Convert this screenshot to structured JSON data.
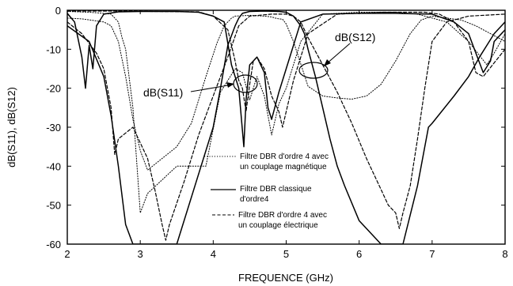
{
  "chart_data": {
    "type": "line",
    "title": "",
    "xlabel": "FREQUENCE (GHz)",
    "ylabel": "dB(S11), dB(S12)",
    "xlim": [
      2,
      8
    ],
    "ylim": [
      -60,
      0
    ],
    "xticks": [
      2,
      3,
      4,
      5,
      6,
      7,
      8
    ],
    "yticks": [
      0,
      -10,
      -20,
      -30,
      -40,
      -50,
      -60
    ],
    "grid": false,
    "legend_placement": "bottom-center",
    "annotations": [
      {
        "text": "dB(S11)"
      },
      {
        "text": "dB(S12)"
      }
    ],
    "series": [
      {
        "name": "Filtre DBR d'ordre 4 avec un couplage magnétique",
        "legend_lines": [
          "Filtre DBR d'ordre 4 avec",
          "un couplage magnétique"
        ],
        "style": "dotted",
        "s12": {
          "x": [
            2.0,
            2.2,
            2.35,
            2.5,
            2.6,
            2.7,
            2.8,
            2.9,
            3.0,
            3.1,
            3.3,
            3.5,
            3.7,
            3.9,
            4.05,
            4.15,
            4.25,
            4.3,
            4.5,
            4.7,
            4.8,
            4.85,
            4.9,
            4.95,
            5.0,
            5.1,
            5.3,
            5.5,
            5.7,
            5.9,
            6.1,
            6.3,
            6.5,
            6.7,
            6.85,
            7.0,
            7.2,
            7.4,
            7.6,
            7.8,
            8.0
          ],
          "y": [
            -2.0,
            -2.2,
            -2.6,
            -3.0,
            -4.0,
            -8.0,
            -17.0,
            -28.0,
            -36.0,
            -41.0,
            -38.0,
            -35.0,
            -29.0,
            -17.0,
            -8.5,
            -4.0,
            -2.0,
            -1.5,
            -1.3,
            -1.5,
            -1.7,
            -2.0,
            -2.2,
            -2.3,
            -3.5,
            -8.0,
            -19.5,
            -22.0,
            -22.5,
            -22.8,
            -22.0,
            -19.0,
            -13.0,
            -6.0,
            -2.5,
            -1.5,
            -2.0,
            -2.5,
            -4.0,
            -6.0,
            -8.0
          ]
        },
        "s11": {
          "x": [
            2.0,
            2.3,
            2.45,
            2.6,
            2.7,
            2.75,
            2.8,
            2.9,
            3.0,
            3.1,
            3.5,
            3.9,
            4.1,
            4.3,
            4.4,
            4.5,
            4.6,
            4.7,
            4.8,
            4.9,
            5.0,
            5.2,
            5.5,
            6.0,
            6.5,
            6.8,
            7.2,
            7.5,
            7.75,
            7.85,
            8.0
          ],
          "y": [
            -0.3,
            -0.5,
            -0.7,
            -1.0,
            -3.0,
            -7.0,
            -10.0,
            -25.0,
            -52.0,
            -47.0,
            -40.0,
            -40.0,
            -21.0,
            -15.0,
            -16.0,
            -23.0,
            -17.0,
            -22.0,
            -32.0,
            -24.0,
            -20.0,
            -8.0,
            -1.0,
            -0.5,
            -0.5,
            -1.0,
            -3.0,
            -8.0,
            -14.0,
            -11.0,
            -6.0
          ]
        }
      },
      {
        "name": "Filtre DBR classique d'ordre4",
        "legend_lines": [
          "Filtre DBR classique",
          "d'ordre4"
        ],
        "style": "solid",
        "s12": {
          "x": [
            2.0,
            2.3,
            2.5,
            2.6,
            2.7,
            2.8,
            2.9,
            3.0,
            3.5,
            4.0,
            4.1,
            4.2,
            4.3,
            4.35,
            4.4,
            4.5,
            4.7,
            4.9,
            5.0,
            5.1,
            5.2,
            5.25,
            5.3,
            5.4,
            5.5,
            5.6,
            5.7,
            5.8,
            6.0,
            6.3,
            6.6,
            6.8,
            6.95,
            7.0,
            7.3,
            7.5,
            7.65,
            7.75,
            7.85,
            8.0
          ],
          "y": [
            -4.0,
            -8.0,
            -17.0,
            -27.0,
            -40.0,
            -55.0,
            -60.0,
            -60.0,
            -60.0,
            -30.0,
            -20.0,
            -9.0,
            -4.0,
            -2.0,
            -0.8,
            -0.3,
            -0.2,
            -0.3,
            -0.5,
            -1.5,
            -4.0,
            -6.0,
            -10.0,
            -17.0,
            -25.0,
            -33.0,
            -40.0,
            -45.0,
            -54.0,
            -60.0,
            -60.0,
            -45.0,
            -30.0,
            -29.0,
            -22.0,
            -17.0,
            -12.0,
            -9.0,
            -6.0,
            -3.0
          ]
        },
        "s11": {
          "x": [
            2.0,
            2.1,
            2.2,
            2.25,
            2.3,
            2.35,
            2.4,
            2.5,
            2.7,
            3.0,
            3.5,
            3.8,
            4.0,
            4.15,
            4.25,
            4.35,
            4.42,
            4.45,
            4.5,
            4.6,
            4.7,
            4.75,
            4.8,
            4.9,
            5.0,
            5.2,
            5.5,
            6.0,
            6.5,
            7.0,
            7.3,
            7.5,
            7.6,
            7.7,
            7.8,
            7.85,
            8.0
          ],
          "y": [
            -0.8,
            -3.0,
            -12.0,
            -20.0,
            -9.0,
            -15.0,
            -4.0,
            -1.0,
            -0.4,
            -0.3,
            -0.3,
            -0.5,
            -1.5,
            -3.0,
            -14.0,
            -20.0,
            -35.0,
            -23.0,
            -14.0,
            -12.0,
            -16.0,
            -25.0,
            -28.0,
            -21.0,
            -15.0,
            -3.0,
            -1.0,
            -0.8,
            -0.8,
            -1.0,
            -3.0,
            -6.0,
            -11.0,
            -16.0,
            -13.0,
            -8.0,
            -5.0
          ]
        }
      },
      {
        "name": "Filtre DBR d'ordre 4 avec un couplage électrique",
        "legend_lines": [
          "Filtre DBR d'ordre 4 avec",
          "un couplage électrique"
        ],
        "style": "dashed",
        "s12": {
          "x": [
            2.0,
            2.2,
            2.4,
            2.5,
            2.6,
            2.65,
            2.7,
            2.9,
            3.1,
            3.2,
            3.3,
            3.35,
            3.4,
            3.6,
            3.8,
            4.0,
            4.2,
            4.35,
            4.5,
            4.8,
            5.0,
            5.1,
            5.2,
            5.3,
            5.5,
            5.7,
            5.9,
            6.1,
            6.3,
            6.4,
            6.5,
            6.55,
            6.6,
            6.7,
            6.8,
            6.9,
            7.0,
            7.2,
            7.5,
            8.0
          ],
          "y": [
            -3.0,
            -6.0,
            -11.0,
            -15.0,
            -25.0,
            -37.0,
            -33.0,
            -30.0,
            -38.0,
            -46.0,
            -55.0,
            -59.0,
            -55.0,
            -44.0,
            -32.0,
            -22.0,
            -12.0,
            -4.0,
            -1.5,
            -1.0,
            -1.0,
            -1.5,
            -3.0,
            -7.0,
            -14.0,
            -21.0,
            -29.0,
            -38.0,
            -46.0,
            -50.0,
            -52.0,
            -56.0,
            -52.0,
            -45.0,
            -33.0,
            -20.0,
            -8.0,
            -3.0,
            -1.5,
            -1.0
          ]
        },
        "s11": {
          "x": [
            2.0,
            2.4,
            2.8,
            3.2,
            3.8,
            4.0,
            4.2,
            4.3,
            4.35,
            4.4,
            4.45,
            4.5,
            4.55,
            4.6,
            4.7,
            4.8,
            4.9,
            4.95,
            5.0,
            5.1,
            5.3,
            5.7,
            6.3,
            6.9,
            7.1,
            7.3,
            7.5,
            7.6,
            7.7,
            8.0
          ],
          "y": [
            -0.2,
            -0.2,
            -0.2,
            -0.3,
            -0.4,
            -1.5,
            -5.0,
            -13.0,
            -18.0,
            -20.0,
            -26.0,
            -19.0,
            -13.0,
            -12.0,
            -15.0,
            -22.0,
            -26.0,
            -30.0,
            -26.0,
            -18.0,
            -6.0,
            -1.0,
            -0.5,
            -0.5,
            -1.0,
            -3.0,
            -8.0,
            -16.0,
            -17.0,
            -10.0
          ]
        }
      }
    ]
  }
}
